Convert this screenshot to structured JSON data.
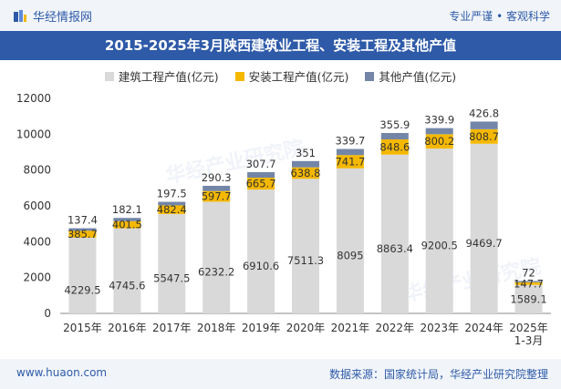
{
  "header": {
    "brand": "华经情报网",
    "tagline": "专业严谨 • 客观科学"
  },
  "footer": {
    "url": "www.huaon.com",
    "source": "数据来源：国家统计局，华经产业研究院整理"
  },
  "watermark": "华经产业研究院",
  "colors": {
    "construction": "#d9d9d9",
    "installation": "#f5b800",
    "other": "#7386a8",
    "brand": "#2e5aa8"
  },
  "chart_data": {
    "type": "bar",
    "stacked": true,
    "title": "2015-2025年3月陕西建筑业工程、安装工程及其他产值",
    "categories": [
      "2015年",
      "2016年",
      "2017年",
      "2018年",
      "2019年",
      "2020年",
      "2021年",
      "2022年",
      "2023年",
      "2024年",
      "2025年\n1-3月"
    ],
    "series": [
      {
        "name": "建筑工程产值(亿元)",
        "values": [
          4229.5,
          4745.6,
          5547.5,
          6232.2,
          6910.6,
          7511.3,
          8095,
          8863.4,
          9200.5,
          9469.7,
          1589.1
        ]
      },
      {
        "name": "安装工程产值(亿元)",
        "values": [
          385.7,
          401.5,
          482.4,
          597.7,
          665.7,
          638.8,
          741.7,
          848.6,
          800.2,
          808.7,
          147.7
        ]
      },
      {
        "name": "其他产值(亿元)",
        "values": [
          137.4,
          182.1,
          197.5,
          290.3,
          307.7,
          351,
          339.7,
          355.9,
          339.9,
          426.8,
          72
        ]
      }
    ],
    "ylim": [
      0,
      12000
    ],
    "yticks": [
      0,
      2000,
      4000,
      6000,
      8000,
      10000,
      12000
    ],
    "legend": "top-center",
    "grid": false
  }
}
